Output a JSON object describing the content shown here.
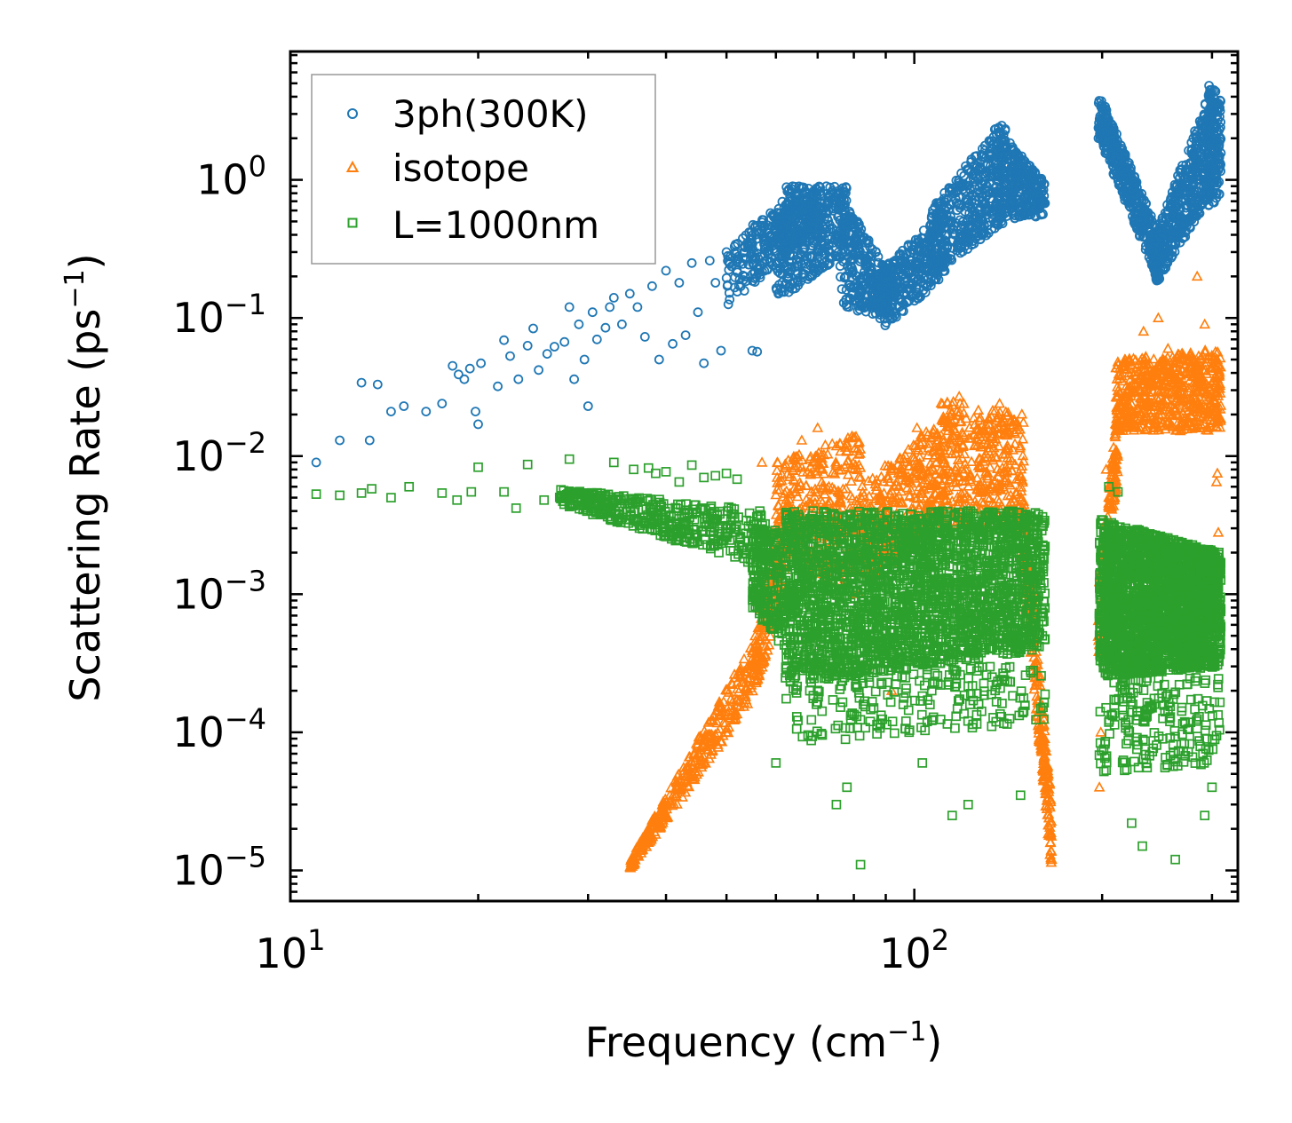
{
  "chart_data": {
    "type": "scatter",
    "xscale": "log",
    "yscale": "log",
    "xlim": [
      10,
      330
    ],
    "ylim": [
      6e-06,
      8.5
    ],
    "xlabel": "Frequency (cm",
    "xlabel_sup": "−1",
    "xlabel_end": ")",
    "ylabel": "Scattering Rate (ps",
    "ylabel_sup": "−1",
    "ylabel_end": ")",
    "x_ticks": [
      {
        "value": 10,
        "base": "10",
        "exp": "1"
      },
      {
        "value": 100,
        "base": "10",
        "exp": "2"
      }
    ],
    "y_ticks": [
      {
        "value": 1,
        "base": "10",
        "exp": "0"
      },
      {
        "value": 0.1,
        "base": "10",
        "exp": "−1"
      },
      {
        "value": 0.01,
        "base": "10",
        "exp": "−2"
      },
      {
        "value": 0.001,
        "base": "10",
        "exp": "−3"
      },
      {
        "value": 0.0001,
        "base": "10",
        "exp": "−4"
      },
      {
        "value": 1e-05,
        "base": "10",
        "exp": "−5"
      }
    ],
    "legend_position": "top-left",
    "grid": false,
    "series": [
      {
        "name": "3ph(300K)",
        "color": "#1f77b4",
        "marker": "circle",
        "points": [
          [
            11.0,
            0.009
          ],
          [
            12.0,
            0.013
          ],
          [
            13.0,
            0.034
          ],
          [
            13.4,
            0.013
          ],
          [
            13.8,
            0.033
          ],
          [
            14.5,
            0.021
          ],
          [
            15.2,
            0.023
          ],
          [
            16.5,
            0.021
          ],
          [
            17.5,
            0.024
          ],
          [
            18.2,
            0.045
          ],
          [
            18.6,
            0.039
          ],
          [
            19.0,
            0.036
          ],
          [
            19.4,
            0.043
          ],
          [
            19.8,
            0.021
          ],
          [
            20.2,
            0.047
          ],
          [
            20.0,
            0.017
          ],
          [
            21.5,
            0.032
          ],
          [
            22.0,
            0.069
          ],
          [
            22.5,
            0.053
          ],
          [
            23.2,
            0.036
          ],
          [
            24.0,
            0.063
          ],
          [
            24.5,
            0.084
          ],
          [
            25.0,
            0.042
          ],
          [
            25.8,
            0.055
          ],
          [
            26.5,
            0.062
          ],
          [
            27.5,
            0.067
          ],
          [
            28.0,
            0.12
          ],
          [
            28.5,
            0.036
          ],
          [
            29.0,
            0.09
          ],
          [
            29.6,
            0.05
          ],
          [
            30.0,
            0.023
          ],
          [
            30.5,
            0.11
          ],
          [
            31.0,
            0.07
          ],
          [
            32.0,
            0.085
          ],
          [
            32.5,
            0.12
          ],
          [
            33.0,
            0.14
          ],
          [
            34.0,
            0.09
          ],
          [
            35.0,
            0.15
          ],
          [
            36.0,
            0.12
          ],
          [
            37.0,
            0.073
          ],
          [
            38.0,
            0.17
          ],
          [
            39.0,
            0.05
          ],
          [
            40.0,
            0.22
          ],
          [
            41.0,
            0.065
          ],
          [
            42.0,
            0.18
          ],
          [
            43.0,
            0.075
          ],
          [
            44.0,
            0.25
          ],
          [
            45.0,
            0.11
          ],
          [
            46.0,
            0.047
          ],
          [
            47.0,
            0.26
          ],
          [
            48.0,
            0.18
          ],
          [
            49.0,
            0.058
          ],
          [
            50.0,
            0.3
          ],
          [
            52.0,
            0.22
          ],
          [
            54.0,
            0.35
          ],
          [
            55.0,
            0.058
          ],
          [
            56.0,
            0.057
          ]
        ],
        "bands": [
          {
            "x": [
              50,
              70
            ],
            "low": [
              0.12,
              0.45
            ],
            "high": [
              0.35,
              1.0
            ],
            "n": 320
          },
          {
            "x": [
              60,
              78
            ],
            "low": [
              0.13,
              0.3
            ],
            "high": [
              0.9,
              0.9
            ],
            "n": 380
          },
          {
            "x": [
              76,
              92
            ],
            "low": [
              0.12,
              0.1
            ],
            "high": [
              0.8,
              0.2
            ],
            "n": 300
          },
          {
            "x": [
              88,
              112
            ],
            "low": [
              0.08,
              0.2
            ],
            "high": [
              0.22,
              0.6
            ],
            "n": 320
          },
          {
            "x": [
              106,
              140
            ],
            "low": [
              0.2,
              0.5
            ],
            "high": [
              0.6,
              3.0
            ],
            "n": 420
          },
          {
            "x": [
              135,
              162
            ],
            "low": [
              0.5,
              0.55
            ],
            "high": [
              2.5,
              0.95
            ],
            "n": 320
          },
          {
            "x": [
              197,
              247
            ],
            "low": [
              2.0,
              0.18
            ],
            "high": [
              4.5,
              0.4
            ],
            "n": 460
          },
          {
            "x": [
              243,
              300
            ],
            "low": [
              0.17,
              0.8
            ],
            "high": [
              0.4,
              4.8
            ],
            "n": 460
          },
          {
            "x": [
              296,
              310
            ],
            "low": [
              0.6,
              0.8
            ],
            "high": [
              5.0,
              4.0
            ],
            "n": 160
          }
        ]
      },
      {
        "name": "isotope",
        "color": "#ff7f0e",
        "marker": "triangle",
        "points": [
          [
            57,
            0.009
          ],
          [
            58,
            0.0015
          ],
          [
            62,
            0.0015
          ],
          [
            66,
            0.013
          ],
          [
            70,
            0.016
          ],
          [
            72,
            0.012
          ],
          [
            82,
            0.007
          ],
          [
            84,
            0.0003
          ],
          [
            88,
            0.005
          ],
          [
            92,
            0.0002
          ],
          [
            101,
            0.016
          ],
          [
            104,
            0.004
          ],
          [
            118,
            0.027
          ],
          [
            137,
            0.024
          ],
          [
            148,
            0.003
          ],
          [
            160,
            8e-05
          ],
          [
            163,
            4e-05
          ],
          [
            165,
            1.3e-05
          ],
          [
            166,
            1.2e-05
          ],
          [
            198,
            4e-05
          ],
          [
            199,
            0.0001
          ],
          [
            203,
            0.008
          ],
          [
            233,
            0.08
          ],
          [
            246,
            0.1
          ],
          [
            255,
            0.06
          ],
          [
            284,
            0.2
          ],
          [
            292,
            0.09
          ],
          [
            306,
            0.0075
          ],
          [
            305,
            0.0065
          ],
          [
            307,
            0.0028
          ]
        ],
        "bands": [
          {
            "x": [
              35,
              55
            ],
            "low": [
              1e-05,
              0.00017
            ],
            "high": [
              1.2e-05,
              0.00045
            ],
            "n": 360
          },
          {
            "x": [
              55,
              62
            ],
            "low": [
              0.00017,
              0.001
            ],
            "high": [
              0.0004,
              0.005
            ],
            "n": 160
          },
          {
            "x": [
              60,
              82
            ],
            "low": [
              0.002,
              0.0009
            ],
            "high": [
              0.009,
              0.015
            ],
            "n": 360
          },
          {
            "x": [
              82,
              112
            ],
            "low": [
              0.001,
              0.004
            ],
            "high": [
              0.006,
              0.02
            ],
            "n": 360
          },
          {
            "x": [
              110,
              150
            ],
            "low": [
              0.003,
              0.003
            ],
            "high": [
              0.026,
              0.02
            ],
            "n": 380
          },
          {
            "x": [
              148,
              166
            ],
            "low": [
              0.002,
              1e-05
            ],
            "high": [
              0.01,
              3e-05
            ],
            "n": 240
          },
          {
            "x": [
              197,
              212
            ],
            "low": [
              0.0003,
              0.008
            ],
            "high": [
              0.001,
              0.025
            ],
            "n": 160
          },
          {
            "x": [
              210,
              310
            ],
            "low": [
              0.015,
              0.015
            ],
            "high": [
              0.05,
              0.06
            ],
            "n": 620
          }
        ]
      },
      {
        "name": "L=1000nm",
        "color": "#2ca02c",
        "marker": "square",
        "points": [
          [
            11.0,
            0.0053
          ],
          [
            12.0,
            0.0052
          ],
          [
            13.0,
            0.0054
          ],
          [
            13.5,
            0.0058
          ],
          [
            14.5,
            0.005
          ],
          [
            15.5,
            0.006
          ],
          [
            17.5,
            0.0054
          ],
          [
            18.5,
            0.0048
          ],
          [
            19.5,
            0.0055
          ],
          [
            20.0,
            0.0083
          ],
          [
            22.0,
            0.0055
          ],
          [
            23.0,
            0.0042
          ],
          [
            24.0,
            0.0087
          ],
          [
            25.5,
            0.0048
          ],
          [
            28.0,
            0.0095
          ],
          [
            29.5,
            0.0053
          ],
          [
            31.0,
            0.0052
          ],
          [
            33.0,
            0.009
          ],
          [
            35.5,
            0.008
          ],
          [
            37.5,
            0.0082
          ],
          [
            38.5,
            0.0075
          ],
          [
            40.0,
            0.0077
          ],
          [
            42.0,
            0.0065
          ],
          [
            44.0,
            0.0086
          ],
          [
            46.0,
            0.007
          ],
          [
            48.0,
            0.0072
          ],
          [
            50.0,
            0.0075
          ],
          [
            52.0,
            0.0068
          ],
          [
            60.0,
            6e-05
          ],
          [
            68.0,
            0.0002
          ],
          [
            75.0,
            3e-05
          ],
          [
            78.0,
            4e-05
          ],
          [
            82.0,
            1.1e-05
          ],
          [
            103.0,
            6e-05
          ],
          [
            115.0,
            2.5e-05
          ],
          [
            122.0,
            3e-05
          ],
          [
            148.0,
            3.5e-05
          ],
          [
            205.0,
            0.006
          ],
          [
            212.0,
            0.0055
          ],
          [
            223.0,
            2.2e-05
          ],
          [
            232.0,
            1.5e-05
          ],
          [
            262.0,
            1.2e-05
          ],
          [
            292.0,
            2.5e-05
          ],
          [
            300.0,
            4e-05
          ]
        ],
        "bands": [
          {
            "x": [
              27,
              58
            ],
            "low": [
              0.0045,
              0.0015
            ],
            "high": [
              0.0058,
              0.004
            ],
            "n": 420
          },
          {
            "x": [
              55,
              62
            ],
            "low": [
              0.0008,
              0.0004
            ],
            "high": [
              0.003,
              0.003
            ],
            "n": 220
          },
          {
            "x": [
              62,
              162
            ],
            "low": [
              0.00022,
              0.0004
            ],
            "high": [
              0.004,
              0.004
            ],
            "n": 2600
          },
          {
            "x": [
              62,
              162
            ],
            "low": [
              8e-05,
              0.00012
            ],
            "high": [
              0.0003,
              0.0003
            ],
            "n": 220
          },
          {
            "x": [
              198,
              310
            ],
            "low": [
              0.00025,
              0.0003
            ],
            "high": [
              0.0035,
              0.002
            ],
            "n": 2400
          },
          {
            "x": [
              198,
              310
            ],
            "low": [
              5e-05,
              6e-05
            ],
            "high": [
              0.00025,
              0.00025
            ],
            "n": 200
          }
        ]
      }
    ]
  }
}
